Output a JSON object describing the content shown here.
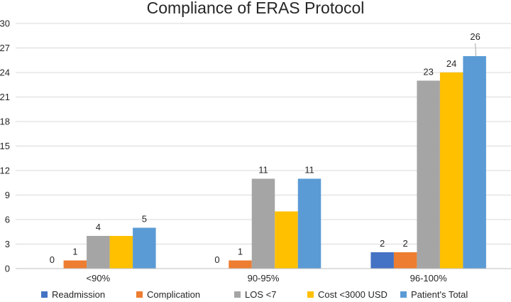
{
  "chart_data": {
    "type": "bar",
    "title": "Compliance of ERAS Protocol",
    "xlabel": "",
    "ylabel": "",
    "ylim": [
      0,
      30
    ],
    "yticks": [
      0,
      3,
      6,
      9,
      12,
      15,
      18,
      21,
      24,
      27,
      30
    ],
    "grid": true,
    "legend_position": "bottom",
    "categories": [
      "<90%",
      "90-95%",
      "96-100%"
    ],
    "series": [
      {
        "name": "Readmission",
        "color": "#4472C4",
        "values": [
          0,
          0,
          2
        ],
        "labels": [
          "0",
          "0",
          "2"
        ]
      },
      {
        "name": "Complication",
        "color": "#ED7D31",
        "values": [
          1,
          1,
          2
        ],
        "labels": [
          "1",
          "1",
          "2"
        ]
      },
      {
        "name": "LOS <7",
        "color": "#A5A5A5",
        "values": [
          4,
          11,
          23
        ],
        "labels": [
          "4",
          "11",
          "23"
        ]
      },
      {
        "name": "Cost <3000 USD",
        "color": "#FFC000",
        "values": [
          4,
          7,
          24
        ],
        "labels": [
          "",
          "",
          "24"
        ]
      },
      {
        "name": "Patient's Total",
        "color": "#5B9BD5",
        "values": [
          5,
          11,
          26
        ],
        "labels": [
          "5",
          "11",
          "26"
        ]
      }
    ]
  }
}
